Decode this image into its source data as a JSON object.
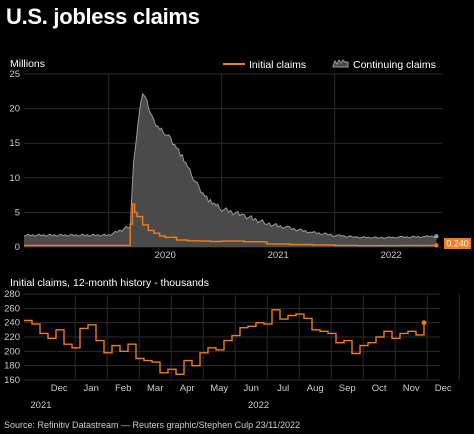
{
  "title": "U.S. jobless claims",
  "source": "Source: Refinitiv Datastream — Reuters graphic/Stephen Culp 23/11/2022",
  "colors": {
    "initial": "#f07d1a",
    "continuing_line": "#9a9a9a",
    "continuing_fill": "#4a4a4a",
    "grid": "#2b2b2b",
    "label": "#cccccc"
  },
  "chart_data": [
    {
      "type": "area",
      "ylabel": "Millions",
      "ylim": [
        0,
        25
      ],
      "yticks": [
        "0",
        "5",
        "10",
        "15",
        "20",
        "25"
      ],
      "xticks": [
        "2020",
        "2021",
        "2022"
      ],
      "xlim": [
        2019.25,
        2022.95
      ],
      "legend_position": "top-right",
      "grid": true,
      "end_label": "0.240",
      "series": [
        {
          "name": "Initial claims",
          "style": "line",
          "x": [
            2019.25,
            2020.0,
            2020.19,
            2020.21,
            2020.23,
            2020.25,
            2020.3,
            2020.35,
            2020.4,
            2020.45,
            2020.5,
            2020.6,
            2020.7,
            2020.8,
            2020.9,
            2021.0,
            2021.2,
            2021.4,
            2021.6,
            2021.8,
            2022.0,
            2022.2,
            2022.4,
            2022.6,
            2022.8,
            2022.9
          ],
          "y": [
            0.22,
            0.22,
            3.3,
            6.2,
            5.0,
            4.4,
            3.2,
            2.4,
            2.0,
            1.6,
            1.4,
            1.0,
            0.9,
            0.85,
            0.8,
            0.85,
            0.75,
            0.45,
            0.36,
            0.3,
            0.23,
            0.19,
            0.2,
            0.22,
            0.23,
            0.24
          ]
        },
        {
          "name": "Continuing claims",
          "style": "area",
          "x": [
            2019.25,
            2020.0,
            2020.19,
            2020.22,
            2020.26,
            2020.3,
            2020.34,
            2020.37,
            2020.4,
            2020.45,
            2020.5,
            2020.55,
            2020.6,
            2020.65,
            2020.7,
            2020.75,
            2020.8,
            2020.85,
            2020.9,
            2020.95,
            2021.0,
            2021.2,
            2021.4,
            2021.6,
            2021.8,
            2022.0,
            2022.2,
            2022.4,
            2022.6,
            2022.8,
            2022.9
          ],
          "y": [
            1.7,
            1.7,
            3.0,
            12.0,
            18.0,
            22.5,
            21.0,
            19.5,
            18.0,
            17.0,
            16.5,
            15.5,
            14.5,
            13.0,
            11.5,
            10.0,
            8.5,
            7.5,
            6.5,
            6.0,
            5.5,
            4.5,
            3.4,
            2.7,
            2.1,
            1.7,
            1.4,
            1.35,
            1.4,
            1.5,
            1.55
          ]
        }
      ]
    },
    {
      "type": "line",
      "title": "Initial claims, 12-month history - thousands",
      "ylim": [
        160,
        280
      ],
      "yticks": [
        "160",
        "180",
        "200",
        "220",
        "240",
        "260",
        "280"
      ],
      "xticks": [
        "Dec",
        "Jan",
        "Feb",
        "Mar",
        "Apr",
        "May",
        "Jun",
        "Jul",
        "Aug",
        "Sep",
        "Oct",
        "Nov",
        "Dec"
      ],
      "year_labels": [
        "2021",
        "2022"
      ],
      "xlim": [
        -1.6,
        11.4
      ],
      "grid": true,
      "series": [
        {
          "name": "Initial claims",
          "x": [
            -1.6,
            -1.35,
            -1.1,
            -0.85,
            -0.6,
            -0.35,
            -0.1,
            0.15,
            0.4,
            0.65,
            0.9,
            1.15,
            1.4,
            1.65,
            1.9,
            2.15,
            2.4,
            2.65,
            2.9,
            3.15,
            3.4,
            3.65,
            3.9,
            4.15,
            4.4,
            4.65,
            4.9,
            5.15,
            5.4,
            5.65,
            5.9,
            6.15,
            6.4,
            6.65,
            6.9,
            7.15,
            7.4,
            7.65,
            7.9,
            8.15,
            8.4,
            8.65,
            8.9,
            9.15,
            9.4,
            9.65,
            9.9,
            10.15,
            10.4,
            10.65,
            10.9
          ],
          "y": [
            243,
            238,
            225,
            218,
            230,
            210,
            205,
            232,
            237,
            215,
            198,
            208,
            200,
            210,
            190,
            187,
            185,
            170,
            175,
            168,
            187,
            180,
            198,
            205,
            202,
            215,
            222,
            233,
            235,
            240,
            238,
            258,
            245,
            250,
            252,
            246,
            230,
            228,
            225,
            212,
            215,
            197,
            208,
            212,
            220,
            228,
            218,
            225,
            228,
            223,
            240
          ]
        }
      ]
    }
  ]
}
